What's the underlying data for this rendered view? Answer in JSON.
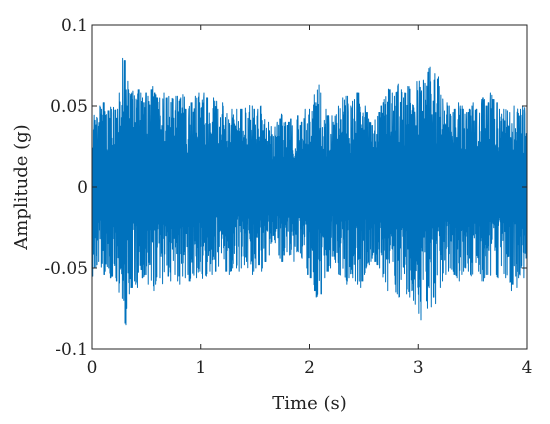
{
  "chart_data": {
    "type": "line",
    "title": "",
    "xlabel": "Time (s)",
    "ylabel": "Amplitude (g)",
    "xlim": [
      0,
      4
    ],
    "ylim": [
      -0.1,
      0.1
    ],
    "x_ticks": [
      0,
      1,
      2,
      3,
      4
    ],
    "x_tick_labels": [
      "0",
      "1",
      "2",
      "3",
      "4"
    ],
    "y_ticks": [
      0.1,
      0.05,
      0,
      -0.05,
      -0.1
    ],
    "y_tick_labels": [
      "0.1",
      "0.05",
      "0",
      "-0.05",
      "-0.1"
    ],
    "grid": false,
    "box": true,
    "series": [
      {
        "color": "#0072BD",
        "sample_interval_s": 0.02,
        "x_start": 0,
        "x_end": 4,
        "upper_envelope": [
          0.038,
          0.045,
          0.043,
          0.05,
          0.048,
          0.052,
          0.049,
          0.047,
          0.055,
          0.05,
          0.052,
          0.048,
          0.058,
          0.062,
          0.085,
          0.078,
          0.068,
          0.06,
          0.058,
          0.062,
          0.055,
          0.06,
          0.058,
          0.055,
          0.052,
          0.058,
          0.056,
          0.06,
          0.062,
          0.058,
          0.055,
          0.057,
          0.06,
          0.058,
          0.055,
          0.056,
          0.058,
          0.057,
          0.054,
          0.056,
          0.058,
          0.055,
          0.057,
          0.052,
          0.054,
          0.056,
          0.052,
          0.055,
          0.056,
          0.058,
          0.052,
          0.055,
          0.058,
          0.055,
          0.05,
          0.052,
          0.055,
          0.053,
          0.048,
          0.05,
          0.052,
          0.05,
          0.048,
          0.05,
          0.052,
          0.048,
          0.045,
          0.048,
          0.05,
          0.048,
          0.046,
          0.05,
          0.048,
          0.052,
          0.05,
          0.048,
          0.045,
          0.048,
          0.05,
          0.052,
          0.044,
          0.038,
          0.04,
          0.038,
          0.035,
          0.038,
          0.04,
          0.042,
          0.045,
          0.04,
          0.038,
          0.04,
          0.042,
          0.038,
          0.04,
          0.044,
          0.038,
          0.04,
          0.045,
          0.048,
          0.05,
          0.048,
          0.052,
          0.058,
          0.062,
          0.063,
          0.058,
          0.052,
          0.048,
          0.044,
          0.042,
          0.044,
          0.046,
          0.048,
          0.052,
          0.05,
          0.055,
          0.058,
          0.056,
          0.055,
          0.05,
          0.054,
          0.052,
          0.058,
          0.062,
          0.056,
          0.05,
          0.046,
          0.042,
          0.04,
          0.038,
          0.042,
          0.044,
          0.046,
          0.05,
          0.054,
          0.058,
          0.062,
          0.06,
          0.058,
          0.056,
          0.062,
          0.066,
          0.06,
          0.055,
          0.058,
          0.062,
          0.064,
          0.06,
          0.065,
          0.07,
          0.072,
          0.068,
          0.066,
          0.064,
          0.075,
          0.08,
          0.074,
          0.066,
          0.07,
          0.068,
          0.062,
          0.058,
          0.055,
          0.052,
          0.05,
          0.048,
          0.046,
          0.048,
          0.052,
          0.055,
          0.05,
          0.048,
          0.045,
          0.046,
          0.048,
          0.05,
          0.052,
          0.048,
          0.046,
          0.052,
          0.055,
          0.054,
          0.05,
          0.052,
          0.058,
          0.054,
          0.05,
          0.052,
          0.048,
          0.045,
          0.048,
          0.05,
          0.052,
          0.046,
          0.048,
          0.05,
          0.052,
          0.048,
          0.05,
          0.05,
          0.046
        ],
        "lower_envelope": [
          -0.055,
          -0.05,
          -0.048,
          -0.052,
          -0.05,
          -0.054,
          -0.052,
          -0.05,
          -0.056,
          -0.055,
          -0.052,
          -0.058,
          -0.065,
          -0.072,
          -0.08,
          -0.085,
          -0.076,
          -0.066,
          -0.062,
          -0.058,
          -0.06,
          -0.062,
          -0.058,
          -0.056,
          -0.06,
          -0.058,
          -0.06,
          -0.062,
          -0.064,
          -0.06,
          -0.058,
          -0.056,
          -0.06,
          -0.062,
          -0.058,
          -0.055,
          -0.058,
          -0.056,
          -0.054,
          -0.058,
          -0.06,
          -0.058,
          -0.055,
          -0.056,
          -0.054,
          -0.058,
          -0.06,
          -0.062,
          -0.056,
          -0.054,
          -0.052,
          -0.058,
          -0.056,
          -0.055,
          -0.052,
          -0.054,
          -0.056,
          -0.052,
          -0.05,
          -0.052,
          -0.054,
          -0.05,
          -0.052,
          -0.054,
          -0.052,
          -0.05,
          -0.048,
          -0.05,
          -0.052,
          -0.05,
          -0.048,
          -0.046,
          -0.05,
          -0.052,
          -0.054,
          -0.052,
          -0.05,
          -0.048,
          -0.052,
          -0.05,
          -0.046,
          -0.044,
          -0.042,
          -0.04,
          -0.038,
          -0.04,
          -0.042,
          -0.044,
          -0.046,
          -0.042,
          -0.04,
          -0.042,
          -0.044,
          -0.046,
          -0.042,
          -0.04,
          -0.042,
          -0.044,
          -0.046,
          -0.05,
          -0.054,
          -0.056,
          -0.058,
          -0.064,
          -0.068,
          -0.072,
          -0.066,
          -0.06,
          -0.056,
          -0.052,
          -0.05,
          -0.048,
          -0.05,
          -0.052,
          -0.054,
          -0.056,
          -0.054,
          -0.058,
          -0.06,
          -0.056,
          -0.054,
          -0.056,
          -0.058,
          -0.06,
          -0.062,
          -0.058,
          -0.054,
          -0.05,
          -0.048,
          -0.046,
          -0.044,
          -0.046,
          -0.048,
          -0.05,
          -0.052,
          -0.056,
          -0.06,
          -0.064,
          -0.062,
          -0.058,
          -0.06,
          -0.066,
          -0.068,
          -0.062,
          -0.058,
          -0.062,
          -0.066,
          -0.068,
          -0.064,
          -0.07,
          -0.074,
          -0.078,
          -0.082,
          -0.076,
          -0.072,
          -0.078,
          -0.08,
          -0.074,
          -0.068,
          -0.072,
          -0.066,
          -0.062,
          -0.058,
          -0.056,
          -0.054,
          -0.052,
          -0.05,
          -0.052,
          -0.054,
          -0.056,
          -0.058,
          -0.054,
          -0.052,
          -0.05,
          -0.052,
          -0.054,
          -0.056,
          -0.058,
          -0.054,
          -0.052,
          -0.056,
          -0.058,
          -0.056,
          -0.054,
          -0.056,
          -0.06,
          -0.058,
          -0.054,
          -0.056,
          -0.052,
          -0.05,
          -0.054,
          -0.056,
          -0.058,
          -0.064,
          -0.06,
          -0.058,
          -0.062,
          -0.056,
          -0.054,
          -0.056,
          -0.054
        ]
      }
    ]
  }
}
